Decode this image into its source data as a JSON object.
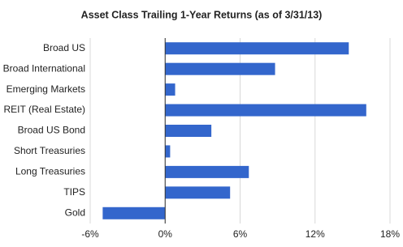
{
  "chart_data": {
    "type": "bar",
    "orientation": "horizontal",
    "title": "Asset Class Trailing 1-Year Returns (as of 3/31/13)",
    "categories": [
      "Broad US",
      "Broad International",
      "Emerging Markets",
      "REIT (Real Estate)",
      "Broad US Bond",
      "Short Treasuries",
      "Long Treasuries",
      "TIPS",
      "Gold"
    ],
    "values": [
      14.7,
      8.8,
      0.8,
      16.1,
      3.7,
      0.4,
      6.7,
      5.2,
      -5.0
    ],
    "color": "#3366cc",
    "xlim": [
      -6,
      18
    ],
    "xticks": [
      {
        "value": -6,
        "label": "-6%"
      },
      {
        "value": 0,
        "label": "0%"
      },
      {
        "value": 6,
        "label": "6%"
      },
      {
        "value": 12,
        "label": "12%"
      },
      {
        "value": 18,
        "label": "18%"
      }
    ],
    "grid": true
  }
}
